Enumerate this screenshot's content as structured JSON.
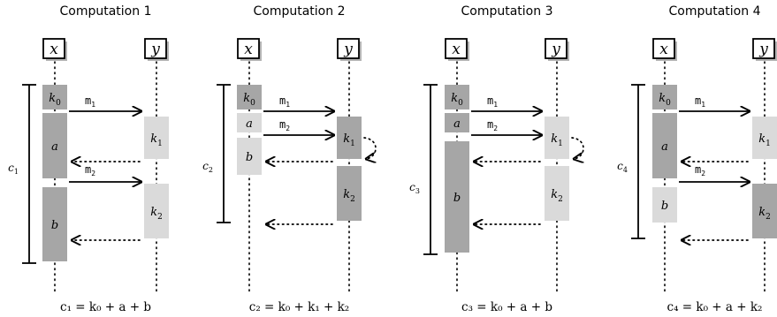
{
  "panels": [
    {
      "title": "Computation 1",
      "actors": [
        "x",
        "y"
      ],
      "side_label": "c",
      "side_label_sub": "1",
      "formula": "c₁ = k₀ + a + b",
      "blocks": [
        {
          "lane": "x",
          "label": "k",
          "sub": "0",
          "shade": "dark"
        },
        {
          "lane": "x",
          "label": "a",
          "sub": "",
          "shade": "dark"
        },
        {
          "lane": "x",
          "label": "b",
          "sub": "",
          "shade": "dark"
        },
        {
          "lane": "y",
          "label": "k",
          "sub": "1",
          "shade": "light"
        },
        {
          "lane": "y",
          "label": "k",
          "sub": "2",
          "shade": "light"
        }
      ],
      "messages": [
        {
          "label": "m",
          "sub": "1",
          "style": "solid"
        },
        {
          "label": "",
          "sub": "",
          "style": "dotted"
        },
        {
          "label": "m",
          "sub": "2",
          "style": "solid"
        },
        {
          "label": "",
          "sub": "",
          "style": "dotted"
        }
      ]
    },
    {
      "title": "Computation 2",
      "actors": [
        "x",
        "y"
      ],
      "side_label": "c",
      "side_label_sub": "2",
      "formula": "c₂ = k₀ + k₁ + k₂",
      "blocks": [
        {
          "lane": "x",
          "label": "k",
          "sub": "0",
          "shade": "dark"
        },
        {
          "lane": "x",
          "label": "a",
          "sub": "",
          "shade": "light"
        },
        {
          "lane": "x",
          "label": "b",
          "sub": "",
          "shade": "light"
        },
        {
          "lane": "y",
          "label": "k",
          "sub": "1",
          "shade": "dark"
        },
        {
          "lane": "y",
          "label": "k",
          "sub": "2",
          "shade": "dark"
        }
      ],
      "messages": [
        {
          "label": "m",
          "sub": "1",
          "style": "solid"
        },
        {
          "label": "m",
          "sub": "2",
          "style": "solid"
        },
        {
          "label": "",
          "sub": "",
          "style": "dotted"
        },
        {
          "label": "",
          "sub": "",
          "style": "dotted"
        }
      ]
    },
    {
      "title": "Computation 3",
      "actors": [
        "x",
        "y"
      ],
      "side_label": "c",
      "side_label_sub": "3",
      "formula": "c₃ = k₀ + a + b",
      "blocks": [
        {
          "lane": "x",
          "label": "k",
          "sub": "0",
          "shade": "dark"
        },
        {
          "lane": "x",
          "label": "a",
          "sub": "",
          "shade": "dark"
        },
        {
          "lane": "x",
          "label": "b",
          "sub": "",
          "shade": "dark"
        },
        {
          "lane": "y",
          "label": "k",
          "sub": "1",
          "shade": "light"
        },
        {
          "lane": "y",
          "label": "k",
          "sub": "2",
          "shade": "light"
        }
      ],
      "messages": [
        {
          "label": "m",
          "sub": "1",
          "style": "solid"
        },
        {
          "label": "m",
          "sub": "2",
          "style": "solid"
        },
        {
          "label": "",
          "sub": "",
          "style": "dotted"
        },
        {
          "label": "",
          "sub": "",
          "style": "dotted"
        }
      ]
    },
    {
      "title": "Computation 4",
      "actors": [
        "x",
        "y"
      ],
      "side_label": "c",
      "side_label_sub": "4",
      "formula": "c₄ = k₀ + a + k₂",
      "blocks": [
        {
          "lane": "x",
          "label": "k",
          "sub": "0",
          "shade": "dark"
        },
        {
          "lane": "x",
          "label": "a",
          "sub": "",
          "shade": "dark"
        },
        {
          "lane": "x",
          "label": "b",
          "sub": "",
          "shade": "light"
        },
        {
          "lane": "y",
          "label": "k",
          "sub": "1",
          "shade": "light"
        },
        {
          "lane": "y",
          "label": "k",
          "sub": "2",
          "shade": "dark"
        }
      ],
      "messages": [
        {
          "label": "m",
          "sub": "1",
          "style": "solid"
        },
        {
          "label": "",
          "sub": "",
          "style": "dotted"
        },
        {
          "label": "m",
          "sub": "2",
          "style": "solid"
        },
        {
          "label": "",
          "sub": "",
          "style": "dotted"
        }
      ]
    }
  ],
  "colors": {
    "dark": "#a6a6a6",
    "light": "#dadada",
    "shadow": "#b3b3b3",
    "ink": "#000000"
  }
}
